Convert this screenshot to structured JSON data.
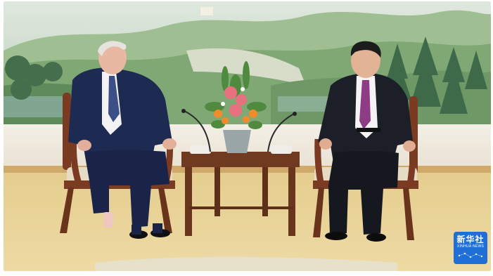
{
  "image": {
    "scene": "meeting-room",
    "colors": {
      "carpet": "#e8d39a",
      "wall": "#efe9dd",
      "mural_sky": "#e9efe6",
      "suit_navy": "#1d2a52",
      "suit_black": "#1c1f27",
      "chair_wood": "#7a3b22",
      "chair_seat": "#e6dcc6",
      "tie_purple": "#8e3c86",
      "brand_blue": "#1f6fd6"
    }
  },
  "watermark": {
    "logo_text": "新华社",
    "logo_subtext": "XINHUA NEWS"
  }
}
